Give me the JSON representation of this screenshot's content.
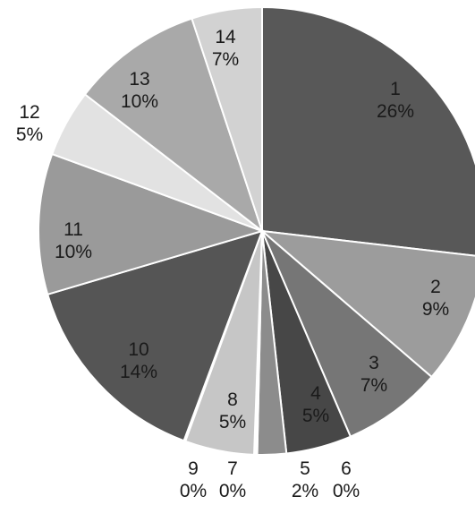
{
  "chart_data": {
    "type": "pie",
    "title": "",
    "direction": "clockwise",
    "start": "12 o'clock",
    "slices": [
      {
        "label": "1",
        "percent_label": "26%",
        "value": 26,
        "color": "#585858"
      },
      {
        "label": "2",
        "percent_label": "9%",
        "value": 9,
        "color": "#9c9c9c"
      },
      {
        "label": "3",
        "percent_label": "7%",
        "value": 7,
        "color": "#767676"
      },
      {
        "label": "4",
        "percent_label": "5%",
        "value": 5,
        "color": "#474747"
      },
      {
        "label": "5",
        "percent_label": "2%",
        "value": 2,
        "color": "#8c8c8c"
      },
      {
        "label": "6",
        "percent_label": "0%",
        "value": 0,
        "color": "#7a7a7a"
      },
      {
        "label": "7",
        "percent_label": "0%",
        "value": 0,
        "color": "#bcbcbc"
      },
      {
        "label": "8",
        "percent_label": "5%",
        "value": 5,
        "color": "#c6c6c6"
      },
      {
        "label": "9",
        "percent_label": "0%",
        "value": 0,
        "color": "#808080"
      },
      {
        "label": "10",
        "percent_label": "14%",
        "value": 14,
        "color": "#555555"
      },
      {
        "label": "11",
        "percent_label": "10%",
        "value": 10,
        "color": "#9a9a9a"
      },
      {
        "label": "12",
        "percent_label": "5%",
        "value": 5,
        "color": "#e2e2e2"
      },
      {
        "label": "13",
        "percent_label": "10%",
        "value": 10,
        "color": "#a9a9a9"
      },
      {
        "label": "14",
        "percent_label": "7%",
        "value": 7,
        "color": "#d2d2d2"
      }
    ],
    "legend": "none"
  }
}
